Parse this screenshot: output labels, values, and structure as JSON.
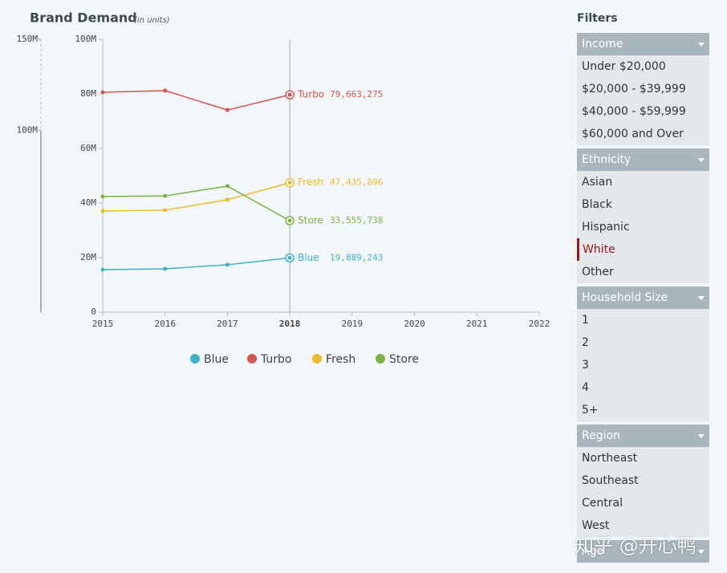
{
  "chart_data": {
    "type": "line",
    "title": "Brand Demand",
    "subtitle": "(in units)",
    "x": [
      2015,
      2016,
      2017,
      2018
    ],
    "xlim": [
      2015,
      2022
    ],
    "xticks": [
      2015,
      2016,
      2017,
      2018,
      2019,
      2020,
      2021,
      2022
    ],
    "highlight_x": 2018,
    "ylim": [
      0,
      100000000
    ],
    "yticks": [
      0,
      {
        "value": 20000000,
        "label": "20M"
      },
      {
        "value": 40000000,
        "label": "40M"
      },
      {
        "value": 60000000,
        "label": "60M"
      },
      {
        "value": 80000000,
        "label": "80M"
      },
      {
        "value": 100000000,
        "label": "100M"
      }
    ],
    "series": [
      {
        "name": "Blue",
        "color": "#3bb3c8",
        "values": [
          15600000,
          15900000,
          17400000,
          19889243
        ],
        "value_labels": [
          null,
          null,
          null,
          "19,889,243"
        ]
      },
      {
        "name": "Turbo",
        "color": "#d9534f",
        "values": [
          80600000,
          81200000,
          74100000,
          79663275
        ],
        "value_labels": [
          null,
          null,
          null,
          "79,663,275"
        ]
      },
      {
        "name": "Fresh",
        "color": "#f0b92a",
        "values": [
          37100000,
          37400000,
          41200000,
          47435896
        ],
        "value_labels": [
          null,
          null,
          null,
          "47,435,896"
        ]
      },
      {
        "name": "Store",
        "color": "#7cb342",
        "values": [
          42400000,
          42600000,
          46200000,
          33555738
        ],
        "value_labels": [
          null,
          null,
          null,
          "33,555,738"
        ]
      }
    ],
    "navigator": {
      "ylim": [
        0,
        150000000
      ],
      "yticks": [
        {
          "value": 150000000,
          "label": "150M"
        },
        {
          "value": 100000000,
          "label": "100M"
        }
      ]
    },
    "legend": "bottom"
  },
  "filters": {
    "title": "Filters",
    "groups": [
      {
        "label": "Income",
        "items": [
          "Under $20,000",
          "$20,000 - $39,999",
          "$40,000 - $59,999",
          "$60,000 and Over"
        ]
      },
      {
        "label": "Ethnicity",
        "items": [
          "Asian",
          "Black",
          "Hispanic",
          "White",
          "Other"
        ],
        "selected_index": 3
      },
      {
        "label": "Household Size",
        "items": [
          "1",
          "2",
          "3",
          "4",
          "5+"
        ]
      },
      {
        "label": "Region",
        "items": [
          "Northeast",
          "Southeast",
          "Central",
          "West"
        ]
      },
      {
        "label": "Age",
        "items": []
      }
    ]
  },
  "watermark": "知乎 @开心鸭"
}
